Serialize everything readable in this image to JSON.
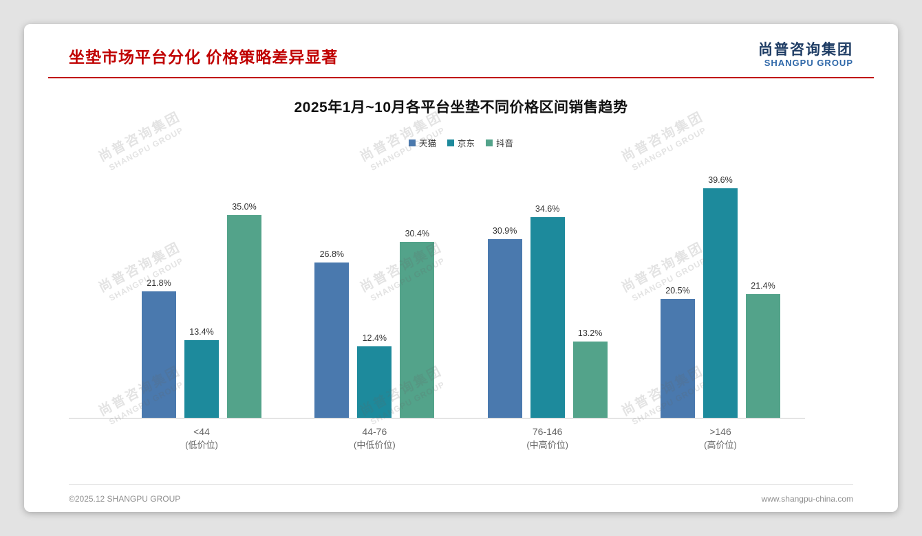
{
  "page": {
    "title": "坐垫市场平台分化 价格策略差异显著",
    "logo": {
      "cn": "尚普咨询集团",
      "en": "SHANGPU GROUP"
    },
    "watermark": {
      "line1": "尚普咨询集团",
      "line2": "SHANGPU GROUP"
    },
    "footer": {
      "left": "©2025.12 SHANGPU GROUP",
      "right": "www.shangpu-china.com"
    }
  },
  "chart_data": {
    "type": "bar",
    "title": "2025年1月~10月各平台坐垫不同价格区间销售趋势",
    "categories": [
      {
        "label": "<44",
        "sublabel": "(低价位)"
      },
      {
        "label": "44-76",
        "sublabel": "(中低价位)"
      },
      {
        "label": "76-146",
        "sublabel": "(中高价位)"
      },
      {
        "label": ">146",
        "sublabel": "(高价位)"
      }
    ],
    "series": [
      {
        "name": "天猫",
        "color": "#4a79ae",
        "values": [
          21.8,
          26.8,
          30.9,
          20.5
        ]
      },
      {
        "name": "京东",
        "color": "#1d8a9c",
        "values": [
          13.4,
          12.4,
          34.6,
          39.6
        ]
      },
      {
        "name": "抖音",
        "color": "#53a38a",
        "values": [
          35.0,
          30.4,
          13.2,
          21.4
        ]
      }
    ],
    "value_label_suffix": "%",
    "ylim": [
      0,
      42
    ],
    "grid": false,
    "legend_position": "top",
    "xlabel": "",
    "ylabel": ""
  }
}
